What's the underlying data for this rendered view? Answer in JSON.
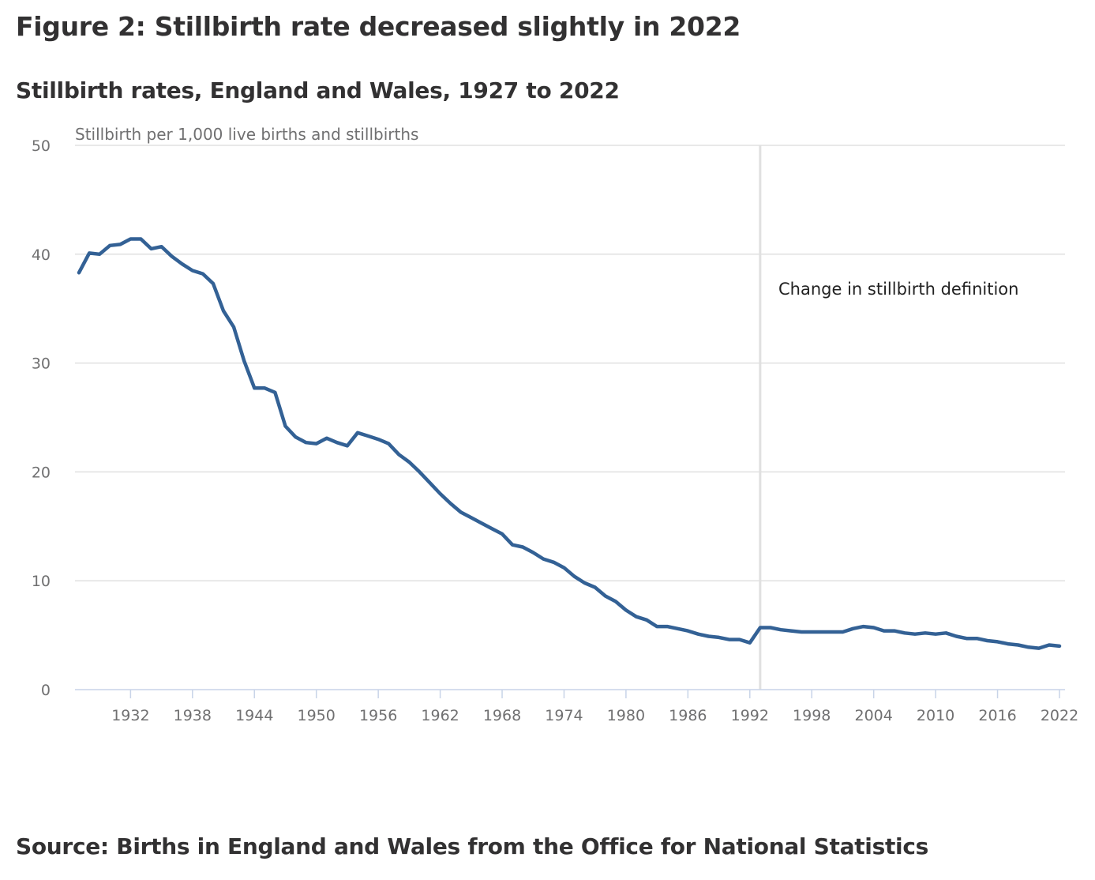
{
  "title": "Figure 2: Stillbirth rate decreased slightly in 2022",
  "source": "Source: Births in England and Wales from the Office for National Statistics",
  "colors": {
    "line": "#336195",
    "grid": "#e0e0e0",
    "axis": "#c8d4e8",
    "annotation_line": "#e0e0e0"
  },
  "chart_data": {
    "type": "line",
    "title": "Stillbirth rates, England and Wales, 1927 to 2022",
    "xlabel": "",
    "ylabel": "Stillbirth per 1,000 live births and stillbirths",
    "xlim": [
      1927,
      2022
    ],
    "ylim": [
      0,
      50
    ],
    "yticks": [
      0,
      10,
      20,
      30,
      40,
      50
    ],
    "xticks": [
      1932,
      1938,
      1944,
      1950,
      1956,
      1962,
      1968,
      1974,
      1980,
      1986,
      1992,
      1998,
      2004,
      2010,
      2016,
      2022
    ],
    "grid": true,
    "annotation": {
      "x": 1993,
      "text": "Change in stillbirth definition"
    },
    "series": [
      {
        "name": "Stillbirth rate",
        "x_start": 1927,
        "values": [
          38.3,
          40.1,
          40.0,
          40.8,
          40.9,
          41.4,
          41.4,
          40.5,
          40.7,
          39.8,
          39.1,
          38.5,
          38.2,
          37.3,
          34.8,
          33.3,
          30.2,
          27.7,
          27.7,
          27.3,
          24.2,
          23.2,
          22.7,
          22.6,
          23.1,
          22.7,
          22.4,
          23.6,
          23.3,
          23.0,
          22.6,
          21.6,
          20.9,
          20.0,
          19.0,
          18.0,
          17.1,
          16.3,
          15.8,
          15.3,
          14.8,
          14.3,
          13.3,
          13.1,
          12.6,
          12.0,
          11.7,
          11.2,
          10.4,
          9.8,
          9.4,
          8.6,
          8.1,
          7.3,
          6.7,
          6.4,
          5.8,
          5.8,
          5.6,
          5.4,
          5.1,
          4.9,
          4.8,
          4.6,
          4.6,
          4.3,
          5.7,
          5.7,
          5.5,
          5.4,
          5.3,
          5.3,
          5.3,
          5.3,
          5.3,
          5.6,
          5.8,
          5.7,
          5.4,
          5.4,
          5.2,
          5.1,
          5.2,
          5.1,
          5.2,
          4.9,
          4.7,
          4.7,
          4.5,
          4.4,
          4.2,
          4.1,
          3.9,
          3.8,
          4.1,
          4.0
        ]
      }
    ]
  }
}
